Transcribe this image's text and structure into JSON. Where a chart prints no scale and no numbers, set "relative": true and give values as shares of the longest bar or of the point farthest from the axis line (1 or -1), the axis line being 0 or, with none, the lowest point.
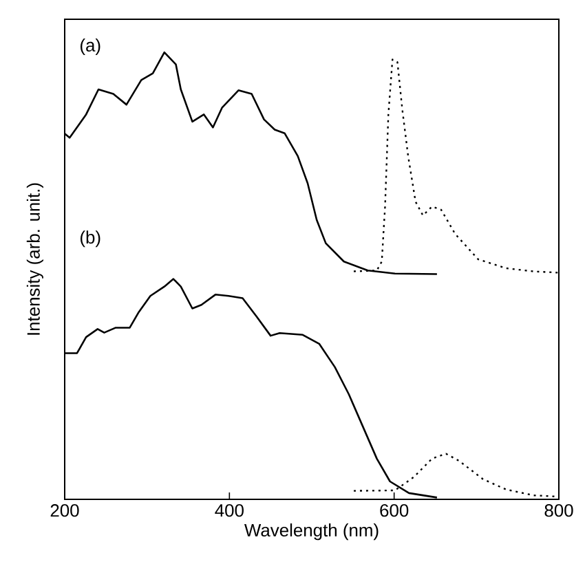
{
  "chart_data": {
    "type": "line",
    "relative": true,
    "xlabel": "Wavelength (nm)",
    "ylabel": "Intensity (arb. unit.)",
    "annotations": [
      "(a)",
      "(b)"
    ],
    "xlim": [
      200,
      800
    ],
    "xticks": [
      200,
      400,
      600,
      800
    ],
    "tick_labels": "x",
    "marker": "none",
    "series": [
      {
        "color": "#000000",
        "line_style": "solid",
        "x": [
          200,
          206,
          226,
          241,
          259,
          275,
          293,
          307,
          321,
          335,
          341,
          355,
          369,
          380,
          391,
          411,
          427,
          442,
          455,
          467,
          483,
          495,
          506,
          517,
          539,
          568,
          601,
          652
        ],
        "values": [
          0.818,
          0.809,
          0.861,
          0.917,
          0.907,
          0.883,
          0.938,
          0.953,
          1.0,
          0.973,
          0.917,
          0.845,
          0.861,
          0.832,
          0.876,
          0.915,
          0.907,
          0.85,
          0.827,
          0.819,
          0.768,
          0.707,
          0.625,
          0.573,
          0.532,
          0.512,
          0.505,
          0.504
        ]
      },
      {
        "color": "#000000",
        "line_style": "dotted",
        "x": [
          551,
          579,
          585,
          589,
          593,
          598,
          604,
          610,
          617,
          626,
          635,
          646,
          657,
          674,
          702,
          736,
          769,
          800
        ],
        "values": [
          0.51,
          0.512,
          0.532,
          0.655,
          0.861,
          0.984,
          0.978,
          0.871,
          0.768,
          0.666,
          0.635,
          0.655,
          0.648,
          0.594,
          0.537,
          0.517,
          0.51,
          0.507
        ]
      },
      {
        "color": "#000000",
        "line_style": "solid",
        "x": [
          200,
          215,
          226,
          240,
          248,
          262,
          279,
          290,
          304,
          321,
          332,
          341,
          355,
          366,
          383,
          399,
          416,
          433,
          450,
          461,
          489,
          509,
          528,
          545,
          562,
          579,
          595,
          618,
          652
        ],
        "values": [
          0.327,
          0.327,
          0.363,
          0.381,
          0.373,
          0.384,
          0.384,
          0.419,
          0.455,
          0.476,
          0.493,
          0.476,
          0.427,
          0.435,
          0.458,
          0.455,
          0.45,
          0.409,
          0.366,
          0.372,
          0.368,
          0.348,
          0.296,
          0.235,
          0.163,
          0.091,
          0.04,
          0.014,
          0.004
        ]
      },
      {
        "color": "#000000",
        "line_style": "dotted",
        "x": [
          551,
          601,
          624,
          646,
          663,
          679,
          708,
          736,
          769,
          800
        ],
        "values": [
          0.019,
          0.02,
          0.05,
          0.091,
          0.102,
          0.086,
          0.045,
          0.022,
          0.009,
          0.006
        ]
      }
    ]
  }
}
